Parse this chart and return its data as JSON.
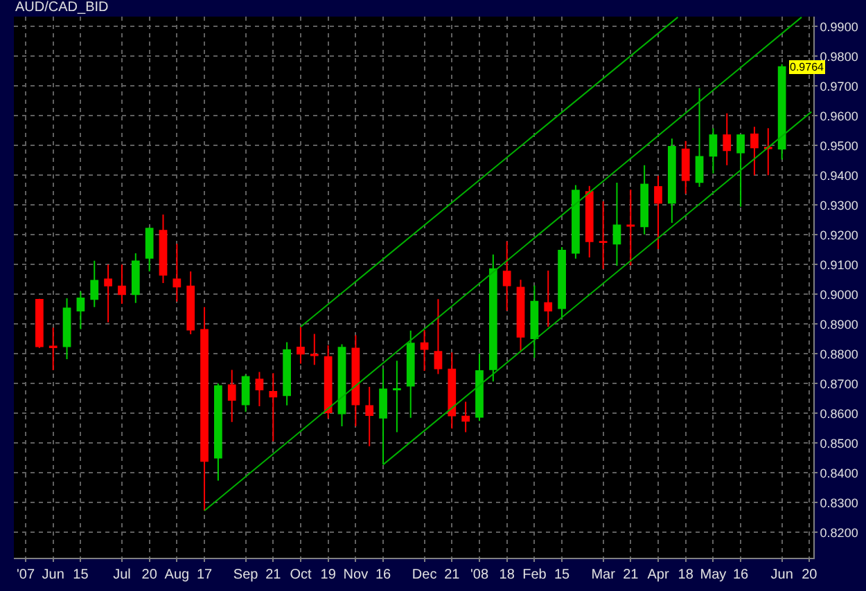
{
  "chart_data": {
    "type": "candlestick",
    "title": "AUD/CAD_BID",
    "x": [
      "2007-05-25",
      "2007-06-01",
      "2007-06-08",
      "2007-06-15",
      "2007-06-22",
      "2007-06-29",
      "2007-07-06",
      "2007-07-13",
      "2007-07-20",
      "2007-07-27",
      "2007-08-03",
      "2007-08-10",
      "2007-08-17",
      "2007-08-24",
      "2007-08-31",
      "2007-09-07",
      "2007-09-14",
      "2007-09-21",
      "2007-09-28",
      "2007-10-05",
      "2007-10-12",
      "2007-10-19",
      "2007-10-26",
      "2007-11-02",
      "2007-11-09",
      "2007-11-16",
      "2007-11-23",
      "2007-11-30",
      "2007-12-07",
      "2007-12-14",
      "2007-12-21",
      "2007-12-28",
      "2008-01-04",
      "2008-01-11",
      "2008-01-18",
      "2008-01-25",
      "2008-02-01",
      "2008-02-08",
      "2008-02-15",
      "2008-02-22",
      "2008-02-29",
      "2008-03-07",
      "2008-03-14",
      "2008-03-21",
      "2008-03-28",
      "2008-04-04",
      "2008-04-11",
      "2008-04-18",
      "2008-04-25",
      "2008-05-02",
      "2008-05-09",
      "2008-05-16",
      "2008-05-23",
      "2008-05-30",
      "2008-06-06"
    ],
    "ohlc": [
      [
        0.8982,
        0.8985,
        0.882,
        0.8825
      ],
      [
        0.8825,
        0.8888,
        0.8745,
        0.8822
      ],
      [
        0.8825,
        0.8987,
        0.8782,
        0.8953
      ],
      [
        0.8945,
        0.901,
        0.8883,
        0.8987
      ],
      [
        0.8984,
        0.9113,
        0.8957,
        0.9046
      ],
      [
        0.9051,
        0.91,
        0.8906,
        0.9029
      ],
      [
        0.9027,
        0.91,
        0.8968,
        0.9
      ],
      [
        0.9,
        0.9138,
        0.8971,
        0.9111
      ],
      [
        0.9122,
        0.9225,
        0.9077,
        0.9221
      ],
      [
        0.9214,
        0.9268,
        0.9038,
        0.9065
      ],
      [
        0.9051,
        0.917,
        0.8976,
        0.9026
      ],
      [
        0.9027,
        0.9077,
        0.8866,
        0.8881
      ],
      [
        0.8881,
        0.8957,
        0.8273,
        0.844
      ],
      [
        0.8451,
        0.87,
        0.8374,
        0.8692
      ],
      [
        0.8695,
        0.8746,
        0.8571,
        0.8645
      ],
      [
        0.863,
        0.873,
        0.8605,
        0.8723
      ],
      [
        0.8714,
        0.8739,
        0.8624,
        0.868
      ],
      [
        0.8673,
        0.8735,
        0.8506,
        0.8656
      ],
      [
        0.8661,
        0.8839,
        0.8627,
        0.8813
      ],
      [
        0.8822,
        0.8891,
        0.8767,
        0.88
      ],
      [
        0.8798,
        0.8867,
        0.8763,
        0.8795
      ],
      [
        0.879,
        0.8829,
        0.8583,
        0.8603
      ],
      [
        0.86,
        0.8832,
        0.8557,
        0.8821
      ],
      [
        0.8818,
        0.8863,
        0.8557,
        0.863
      ],
      [
        0.8625,
        0.8689,
        0.849,
        0.8594
      ],
      [
        0.8585,
        0.8751,
        0.8428,
        0.8681
      ],
      [
        0.868,
        0.8777,
        0.8537,
        0.8682
      ],
      [
        0.8693,
        0.8878,
        0.8585,
        0.8835
      ],
      [
        0.8836,
        0.888,
        0.8743,
        0.8816
      ],
      [
        0.8807,
        0.8984,
        0.8732,
        0.8751
      ],
      [
        0.8748,
        0.8805,
        0.8549,
        0.8593
      ],
      [
        0.859,
        0.8639,
        0.8537,
        0.8575
      ],
      [
        0.8588,
        0.8801,
        0.8575,
        0.8743
      ],
      [
        0.8748,
        0.9134,
        0.8707,
        0.9085
      ],
      [
        0.9077,
        0.9178,
        0.8945,
        0.903
      ],
      [
        0.9023,
        0.9049,
        0.881,
        0.8857
      ],
      [
        0.8852,
        0.903,
        0.8787,
        0.8976
      ],
      [
        0.8971,
        0.908,
        0.8891,
        0.8945
      ],
      [
        0.8953,
        0.9159,
        0.8922,
        0.9147
      ],
      [
        0.9139,
        0.9367,
        0.912,
        0.9349
      ],
      [
        0.9344,
        0.9364,
        0.9124,
        0.9178
      ],
      [
        0.9177,
        0.9313,
        0.9085,
        0.9175
      ],
      [
        0.917,
        0.9375,
        0.9096,
        0.9232
      ],
      [
        0.9232,
        0.9352,
        0.9097,
        0.923
      ],
      [
        0.9228,
        0.9434,
        0.9201,
        0.9369
      ],
      [
        0.9361,
        0.9398,
        0.9152,
        0.9307
      ],
      [
        0.9307,
        0.9523,
        0.924,
        0.9496
      ],
      [
        0.9487,
        0.9515,
        0.9338,
        0.9383
      ],
      [
        0.9377,
        0.9693,
        0.9361,
        0.9462
      ],
      [
        0.9465,
        0.9558,
        0.9406,
        0.9535
      ],
      [
        0.9535,
        0.9608,
        0.9434,
        0.9484
      ],
      [
        0.9476,
        0.9538,
        0.9294,
        0.9535
      ],
      [
        0.9538,
        0.9563,
        0.94,
        0.9493
      ],
      [
        0.9493,
        0.9558,
        0.94,
        0.949
      ],
      [
        0.9489,
        0.9773,
        0.9453,
        0.9764
      ]
    ],
    "colors": [
      "#ff0000",
      "#ff0000",
      "#00cc00",
      "#00cc00",
      "#00cc00",
      "#ff0000",
      "#ff0000",
      "#00cc00",
      "#00cc00",
      "#ff0000",
      "#ff0000",
      "#ff0000",
      "#ff0000",
      "#00cc00",
      "#ff0000",
      "#00cc00",
      "#ff0000",
      "#ff0000",
      "#00cc00",
      "#ff0000",
      "#ff0000",
      "#ff0000",
      "#00cc00",
      "#ff0000",
      "#ff0000",
      "#00cc00",
      "#00cc00",
      "#00cc00",
      "#ff0000",
      "#ff0000",
      "#ff0000",
      "#ff0000",
      "#00cc00",
      "#00cc00",
      "#ff0000",
      "#ff0000",
      "#00cc00",
      "#ff0000",
      "#00cc00",
      "#00cc00",
      "#ff0000",
      "#ff0000",
      "#00cc00",
      "#ff0000",
      "#00cc00",
      "#ff0000",
      "#00cc00",
      "#ff0000",
      "#00cc00",
      "#00cc00",
      "#ff0000",
      "#00cc00",
      "#ff0000",
      "#ff0000",
      "#00cc00"
    ],
    "series": [
      {
        "type": "line",
        "color": "#00b000",
        "x": [
          "2007-08-17",
          "2008-06-16"
        ],
        "values": [
          0.8273,
          0.9931
        ]
      },
      {
        "type": "line",
        "color": "#00b000",
        "x": [
          "2007-11-16",
          "2008-06-21"
        ],
        "values": [
          0.8428,
          0.9613
        ]
      },
      {
        "type": "line",
        "color": "#00b000",
        "x": [
          "2007-10-05",
          "2008-04-14"
        ],
        "values": [
          0.8891,
          0.9931
        ]
      }
    ],
    "xlim": [
      "2007-05-12",
      "2008-06-22"
    ],
    "xticks": [
      {
        "value": "2007-05-18",
        "label": "'07"
      },
      {
        "value": "2007-06-01",
        "label": "Jun"
      },
      {
        "value": "2007-06-15",
        "label": "15"
      },
      {
        "value": "2007-07-06",
        "label": "Jul"
      },
      {
        "value": "2007-07-20",
        "label": "20"
      },
      {
        "value": "2007-08-03",
        "label": "Aug"
      },
      {
        "value": "2007-08-17",
        "label": "17"
      },
      {
        "value": "2007-09-07",
        "label": "Sep"
      },
      {
        "value": "2007-09-21",
        "label": "21"
      },
      {
        "value": "2007-10-05",
        "label": "Oct"
      },
      {
        "value": "2007-10-19",
        "label": "19"
      },
      {
        "value": "2007-11-02",
        "label": "Nov"
      },
      {
        "value": "2007-11-16",
        "label": "16"
      },
      {
        "value": "2007-12-07",
        "label": "Dec"
      },
      {
        "value": "2007-12-21",
        "label": "21"
      },
      {
        "value": "2008-01-04",
        "label": "'08"
      },
      {
        "value": "2008-01-18",
        "label": "18"
      },
      {
        "value": "2008-02-01",
        "label": "Feb"
      },
      {
        "value": "2008-02-15",
        "label": "15"
      },
      {
        "value": "2008-03-07",
        "label": "Mar"
      },
      {
        "value": "2008-03-21",
        "label": "21"
      },
      {
        "value": "2008-04-04",
        "label": "Apr"
      },
      {
        "value": "2008-04-18",
        "label": "18"
      },
      {
        "value": "2008-05-02",
        "label": "May"
      },
      {
        "value": "2008-05-16",
        "label": "16"
      },
      {
        "value": "2008-06-06",
        "label": "Jun"
      },
      {
        "value": "2008-06-20",
        "label": "20"
      }
    ],
    "ylim": [
      0.8115,
      0.9933
    ],
    "yticks": [
      {
        "value": 0.82,
        "label": "0.8200"
      },
      {
        "value": 0.83,
        "label": "0.8300"
      },
      {
        "value": 0.84,
        "label": "0.8400"
      },
      {
        "value": 0.85,
        "label": "0.8500"
      },
      {
        "value": 0.86,
        "label": "0.8600"
      },
      {
        "value": 0.87,
        "label": "0.8700"
      },
      {
        "value": 0.88,
        "label": "0.8800"
      },
      {
        "value": 0.89,
        "label": "0.8900"
      },
      {
        "value": 0.9,
        "label": "0.9000"
      },
      {
        "value": 0.91,
        "label": "0.9100"
      },
      {
        "value": 0.92,
        "label": "0.9200"
      },
      {
        "value": 0.93,
        "label": "0.9300"
      },
      {
        "value": 0.94,
        "label": "0.9400"
      },
      {
        "value": 0.95,
        "label": "0.9500"
      },
      {
        "value": 0.96,
        "label": "0.9600"
      },
      {
        "value": 0.97,
        "label": "0.9700"
      },
      {
        "value": 0.98,
        "label": "0.9800"
      },
      {
        "value": 0.99,
        "label": "0.9900"
      }
    ],
    "grid": true,
    "annotations": [
      {
        "text": "0.9764",
        "x": "2008-06-06",
        "y": 0.9764
      }
    ]
  }
}
